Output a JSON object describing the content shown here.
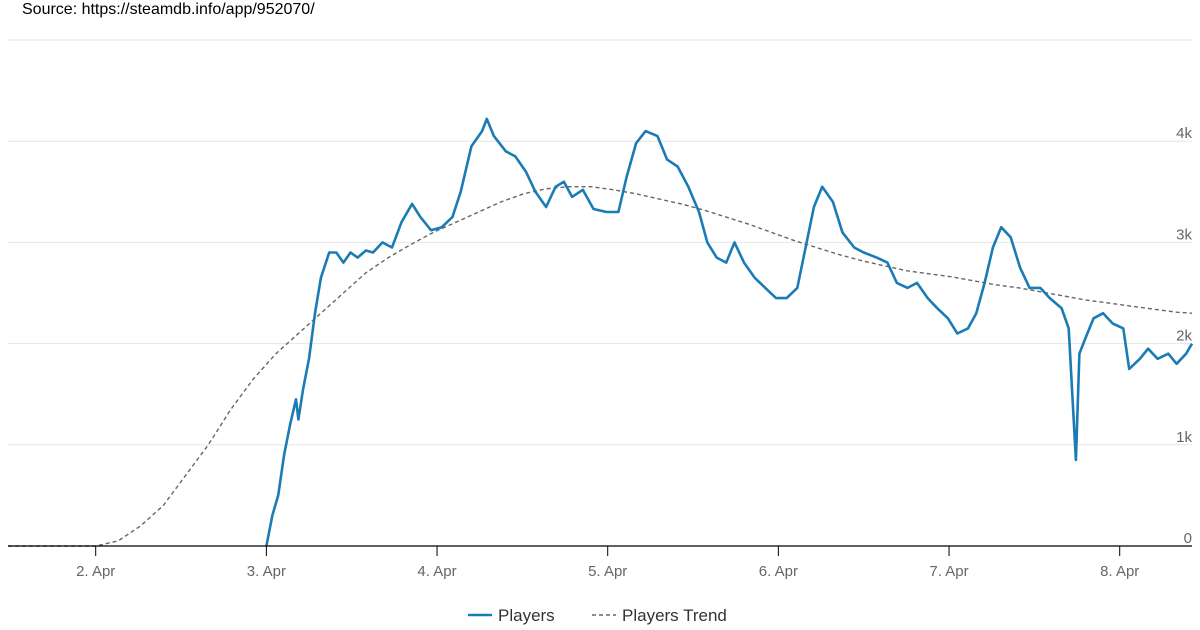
{
  "source_text": "Source: https://steamdb.info/app/952070/",
  "colors": {
    "players": "#1b7bb5",
    "trend": "#666666",
    "grid": "#e6e6e6",
    "axis": "#000000",
    "tick_text": "#666666"
  },
  "chart_data": {
    "type": "line",
    "title": "",
    "xlabel": "",
    "ylabel": "",
    "x_unit": "days",
    "xlim": [
      "2026-04-01T11:40",
      "2026-04-08T10:10"
    ],
    "ylim": [
      0,
      5000
    ],
    "grid": true,
    "legend_position": "bottom-center",
    "x_ticks": [
      {
        "x": "2026-04-02T00:00",
        "label": "2. Apr"
      },
      {
        "x": "2026-04-03T00:00",
        "label": "3. Apr"
      },
      {
        "x": "2026-04-04T00:00",
        "label": "4. Apr"
      },
      {
        "x": "2026-04-05T00:00",
        "label": "5. Apr"
      },
      {
        "x": "2026-04-06T00:00",
        "label": "6. Apr"
      },
      {
        "x": "2026-04-07T00:00",
        "label": "7. Apr"
      },
      {
        "x": "2026-04-08T00:00",
        "label": "8. Apr"
      }
    ],
    "y_ticks": [
      {
        "y": 0,
        "label": "0"
      },
      {
        "y": 1000,
        "label": "1k"
      },
      {
        "y": 2000,
        "label": "2k"
      },
      {
        "y": 3000,
        "label": "3k"
      },
      {
        "y": 4000,
        "label": "4k"
      }
    ],
    "series": [
      {
        "name": "Players",
        "style": "solid",
        "points": [
          [
            "2026-04-03T00:00",
            0
          ],
          [
            "2026-04-03T00:50",
            300
          ],
          [
            "2026-04-03T01:40",
            500
          ],
          [
            "2026-04-03T02:30",
            900
          ],
          [
            "2026-04-03T03:20",
            1200
          ],
          [
            "2026-04-03T04:10",
            1450
          ],
          [
            "2026-04-03T04:30",
            1250
          ],
          [
            "2026-04-03T05:10",
            1550
          ],
          [
            "2026-04-03T06:00",
            1850
          ],
          [
            "2026-04-03T06:50",
            2300
          ],
          [
            "2026-04-03T07:40",
            2650
          ],
          [
            "2026-04-03T08:50",
            2900
          ],
          [
            "2026-04-03T09:50",
            2900
          ],
          [
            "2026-04-03T10:50",
            2800
          ],
          [
            "2026-04-03T11:50",
            2900
          ],
          [
            "2026-04-03T12:50",
            2850
          ],
          [
            "2026-04-03T14:00",
            2920
          ],
          [
            "2026-04-03T15:00",
            2900
          ],
          [
            "2026-04-03T16:20",
            3000
          ],
          [
            "2026-04-03T17:40",
            2950
          ],
          [
            "2026-04-03T19:00",
            3200
          ],
          [
            "2026-04-03T20:30",
            3380
          ],
          [
            "2026-04-03T21:40",
            3250
          ],
          [
            "2026-04-03T23:10",
            3120
          ],
          [
            "2026-04-04T00:40",
            3150
          ],
          [
            "2026-04-04T02:10",
            3250
          ],
          [
            "2026-04-04T03:20",
            3500
          ],
          [
            "2026-04-04T04:50",
            3950
          ],
          [
            "2026-04-04T06:20",
            4100
          ],
          [
            "2026-04-04T07:00",
            4220
          ],
          [
            "2026-04-04T08:00",
            4050
          ],
          [
            "2026-04-04T09:40",
            3900
          ],
          [
            "2026-04-04T11:00",
            3850
          ],
          [
            "2026-04-04T12:30",
            3700
          ],
          [
            "2026-04-04T13:50",
            3500
          ],
          [
            "2026-04-04T15:20",
            3350
          ],
          [
            "2026-04-04T16:40",
            3550
          ],
          [
            "2026-04-04T17:50",
            3600
          ],
          [
            "2026-04-04T19:00",
            3450
          ],
          [
            "2026-04-04T20:30",
            3520
          ],
          [
            "2026-04-04T22:00",
            3330
          ],
          [
            "2026-04-04T23:50",
            3300
          ],
          [
            "2026-04-05T01:30",
            3300
          ],
          [
            "2026-04-05T02:40",
            3650
          ],
          [
            "2026-04-05T04:00",
            3980
          ],
          [
            "2026-04-05T05:20",
            4100
          ],
          [
            "2026-04-05T07:00",
            4050
          ],
          [
            "2026-04-05T08:20",
            3820
          ],
          [
            "2026-04-05T09:50",
            3750
          ],
          [
            "2026-04-05T11:20",
            3550
          ],
          [
            "2026-04-05T12:50",
            3300
          ],
          [
            "2026-04-05T14:00",
            3000
          ],
          [
            "2026-04-05T15:20",
            2850
          ],
          [
            "2026-04-05T16:40",
            2800
          ],
          [
            "2026-04-05T17:50",
            3000
          ],
          [
            "2026-04-05T19:10",
            2800
          ],
          [
            "2026-04-05T20:40",
            2650
          ],
          [
            "2026-04-05T22:10",
            2550
          ],
          [
            "2026-04-05T23:40",
            2450
          ],
          [
            "2026-04-06T01:10",
            2450
          ],
          [
            "2026-04-06T02:40",
            2550
          ],
          [
            "2026-04-06T03:50",
            2950
          ],
          [
            "2026-04-06T05:00",
            3350
          ],
          [
            "2026-04-06T06:10",
            3550
          ],
          [
            "2026-04-06T07:40",
            3400
          ],
          [
            "2026-04-06T09:00",
            3100
          ],
          [
            "2026-04-06T10:40",
            2950
          ],
          [
            "2026-04-06T12:00",
            2900
          ],
          [
            "2026-04-06T13:50",
            2850
          ],
          [
            "2026-04-06T15:20",
            2800
          ],
          [
            "2026-04-06T16:40",
            2600
          ],
          [
            "2026-04-06T18:10",
            2550
          ],
          [
            "2026-04-06T19:30",
            2600
          ],
          [
            "2026-04-06T21:00",
            2450
          ],
          [
            "2026-04-06T22:20",
            2350
          ],
          [
            "2026-04-06T23:50",
            2250
          ],
          [
            "2026-04-07T01:10",
            2100
          ],
          [
            "2026-04-07T02:40",
            2150
          ],
          [
            "2026-04-07T03:50",
            2300
          ],
          [
            "2026-04-07T05:00",
            2600
          ],
          [
            "2026-04-07T06:10",
            2950
          ],
          [
            "2026-04-07T07:20",
            3150
          ],
          [
            "2026-04-07T08:40",
            3050
          ],
          [
            "2026-04-07T10:00",
            2750
          ],
          [
            "2026-04-07T11:20",
            2550
          ],
          [
            "2026-04-07T12:50",
            2550
          ],
          [
            "2026-04-07T14:10",
            2450
          ],
          [
            "2026-04-07T15:50",
            2350
          ],
          [
            "2026-04-07T16:50",
            2150
          ],
          [
            "2026-04-07T17:50",
            850
          ],
          [
            "2026-04-07T18:20",
            1900
          ],
          [
            "2026-04-07T19:10",
            2050
          ],
          [
            "2026-04-07T20:20",
            2250
          ],
          [
            "2026-04-07T21:40",
            2300
          ],
          [
            "2026-04-07T23:00",
            2200
          ],
          [
            "2026-04-08T00:30",
            2150
          ],
          [
            "2026-04-08T01:20",
            1750
          ],
          [
            "2026-04-08T02:50",
            1850
          ],
          [
            "2026-04-08T04:00",
            1950
          ],
          [
            "2026-04-08T05:20",
            1850
          ],
          [
            "2026-04-08T06:50",
            1900
          ],
          [
            "2026-04-08T08:00",
            1800
          ],
          [
            "2026-04-08T09:20",
            1900
          ],
          [
            "2026-04-08T10:10",
            2000
          ]
        ]
      },
      {
        "name": "Players Trend",
        "style": "dashed",
        "points": [
          [
            "2026-04-01T11:40",
            0
          ],
          [
            "2026-04-02T00:00",
            0
          ],
          [
            "2026-04-02T03:10",
            50
          ],
          [
            "2026-04-02T06:20",
            200
          ],
          [
            "2026-04-02T09:30",
            400
          ],
          [
            "2026-04-02T12:40",
            700
          ],
          [
            "2026-04-02T15:50",
            1000
          ],
          [
            "2026-04-02T19:00",
            1350
          ],
          [
            "2026-04-02T22:10",
            1650
          ],
          [
            "2026-04-03T01:20",
            1900
          ],
          [
            "2026-04-03T04:30",
            2100
          ],
          [
            "2026-04-03T07:40",
            2300
          ],
          [
            "2026-04-03T10:50",
            2500
          ],
          [
            "2026-04-03T14:00",
            2700
          ],
          [
            "2026-04-03T17:10",
            2850
          ],
          [
            "2026-04-03T20:20",
            2980
          ],
          [
            "2026-04-03T23:30",
            3100
          ],
          [
            "2026-04-04T02:40",
            3200
          ],
          [
            "2026-04-04T05:50",
            3300
          ],
          [
            "2026-04-04T09:00",
            3400
          ],
          [
            "2026-04-04T12:10",
            3480
          ],
          [
            "2026-04-04T15:20",
            3530
          ],
          [
            "2026-04-04T18:30",
            3550
          ],
          [
            "2026-04-04T21:40",
            3550
          ],
          [
            "2026-04-05T00:50",
            3520
          ],
          [
            "2026-04-05T04:00",
            3480
          ],
          [
            "2026-04-05T07:10",
            3430
          ],
          [
            "2026-04-05T10:20",
            3380
          ],
          [
            "2026-04-05T13:30",
            3320
          ],
          [
            "2026-04-05T16:40",
            3250
          ],
          [
            "2026-04-05T19:50",
            3180
          ],
          [
            "2026-04-05T23:00",
            3100
          ],
          [
            "2026-04-06T02:10",
            3020
          ],
          [
            "2026-04-06T05:20",
            2950
          ],
          [
            "2026-04-06T08:30",
            2880
          ],
          [
            "2026-04-06T11:40",
            2820
          ],
          [
            "2026-04-06T14:50",
            2770
          ],
          [
            "2026-04-06T18:00",
            2720
          ],
          [
            "2026-04-06T21:10",
            2690
          ],
          [
            "2026-04-07T00:20",
            2660
          ],
          [
            "2026-04-07T03:30",
            2620
          ],
          [
            "2026-04-07T06:40",
            2580
          ],
          [
            "2026-04-07T09:50",
            2550
          ],
          [
            "2026-04-07T13:00",
            2510
          ],
          [
            "2026-04-07T16:10",
            2470
          ],
          [
            "2026-04-07T19:20",
            2430
          ],
          [
            "2026-04-07T22:30",
            2400
          ],
          [
            "2026-04-08T01:40",
            2370
          ],
          [
            "2026-04-08T04:50",
            2340
          ],
          [
            "2026-04-08T08:00",
            2310
          ],
          [
            "2026-04-08T10:10",
            2300
          ]
        ]
      }
    ]
  }
}
